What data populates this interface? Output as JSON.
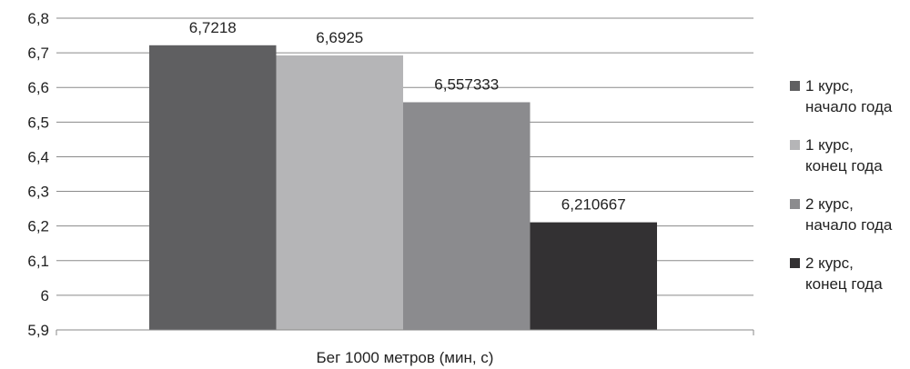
{
  "chart_data": {
    "type": "bar",
    "categories": [
      "Бег 1000 метров (мин, с)"
    ],
    "series": [
      {
        "name": [
          "1 курс,",
          "начало года"
        ],
        "values": [
          6.7218
        ],
        "label": "6,7218",
        "color": "#5f5f61"
      },
      {
        "name": [
          "1 курс,",
          "конец года"
        ],
        "values": [
          6.6925
        ],
        "label": "6,6925",
        "color": "#b5b5b7"
      },
      {
        "name": [
          "2 курс,",
          "начало года"
        ],
        "values": [
          6.557333
        ],
        "label": "6,557333",
        "color": "#8b8b8e"
      },
      {
        "name": [
          "2 курс,",
          "конец года"
        ],
        "values": [
          6.210667
        ],
        "label": "6,210667",
        "color": "#333133"
      }
    ],
    "ylim": [
      5.9,
      6.8
    ],
    "yticks": [
      "5,9",
      "6",
      "6,1",
      "6,2",
      "6,3",
      "6,4",
      "6,5",
      "6,6",
      "6,7",
      "6,8"
    ],
    "xlabel": "Бег 1000 метров (мин, с)",
    "ylabel": "",
    "title": "",
    "grid": true,
    "legend": "right"
  }
}
